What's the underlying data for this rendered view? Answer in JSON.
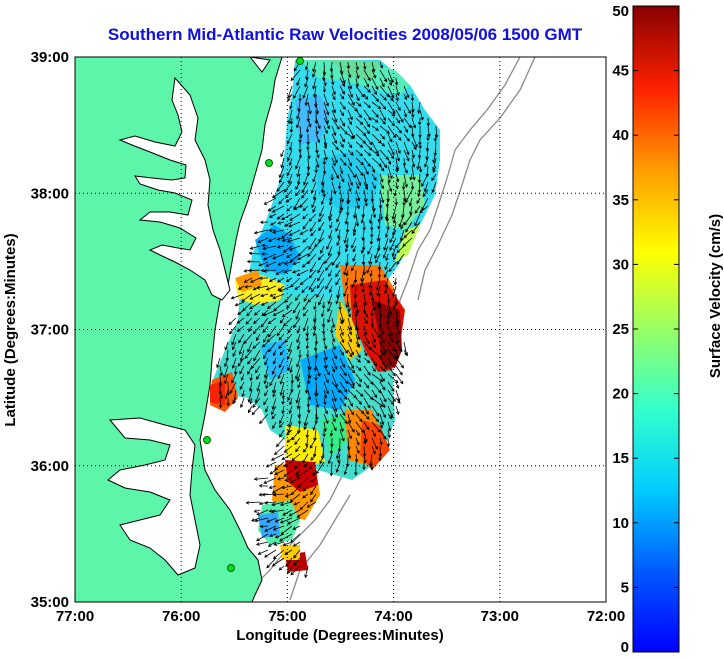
{
  "title": "Southern Mid-Atlantic Raw Velocities 2008/05/06 1500 GMT",
  "x_axis": {
    "label": "Longitude (Degrees:Minutes)",
    "ticks": [
      "77:00",
      "76:00",
      "75:00",
      "74:00",
      "73:00",
      "72:00"
    ]
  },
  "y_axis": {
    "label": "Latitude (Degrees:Minutes)",
    "ticks": [
      "39:00",
      "38:00",
      "37:00",
      "36:00",
      "35:00"
    ]
  },
  "colorbar": {
    "label": "Surface Velocity (cm/s)",
    "ticks": [
      "50",
      "45",
      "40",
      "35",
      "30",
      "25",
      "20",
      "15",
      "10",
      "5",
      "0"
    ],
    "min": 0,
    "max": 50,
    "colormap": "jet"
  },
  "colors": {
    "land": "#5cf5aa",
    "coastline": "#000000",
    "bathymetry": "#888888",
    "station": "#00dd22",
    "title": "#1010e0"
  },
  "map_extent": {
    "lon_west": -77,
    "lon_east": -72,
    "lat_south": 35,
    "lat_north": 39
  },
  "grid": "dotted"
}
